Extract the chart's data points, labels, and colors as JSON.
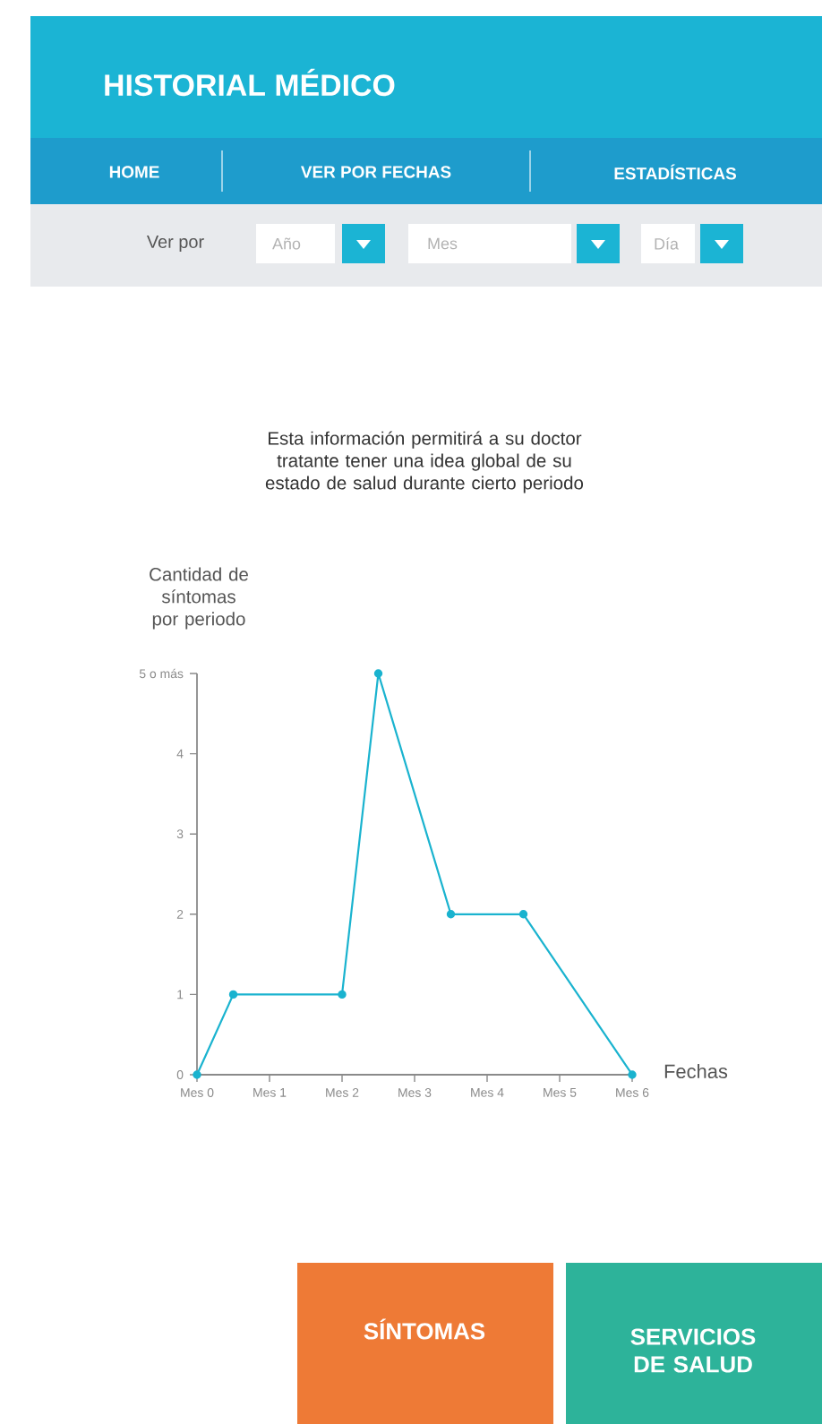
{
  "chart_data": {
    "type": "line",
    "title": "HISTORIAL MÉDICO",
    "subtitle": "Esta información permitirá a su doctor tratante tener una idea global de su estado de salud durante cierto periodo",
    "xlabel": "Fechas",
    "ylabel": "Cantidad de síntomas por periodo",
    "annotations": [
      "HOME",
      "VER POR FECHAS",
      "ESTADÍSTICAS",
      "Ver por",
      "Año",
      "Mes",
      "Día",
      "SÍNTOMAS",
      "SERVICIOS DE SALUD"
    ],
    "categories": [
      "Mes 0",
      null,
      "Mes 1",
      null,
      "Mes 2",
      null,
      "Mes 3",
      null,
      "Mes 4",
      null,
      "Mes 5",
      null,
      "Mes 6"
    ],
    "series": [
      {
        "color": "#1ab3cf",
        "values": [
          0,
          1,
          null,
          null,
          1,
          5,
          null,
          2,
          null,
          2,
          null,
          null,
          0
        ]
      }
    ],
    "ylim": [
      0,
      5
    ],
    "yticks": [
      0,
      1,
      2,
      3,
      4,
      {
        "value": 5,
        "label": "5 o más"
      }
    ],
    "marker": "circle",
    "line_style": "solid"
  }
}
